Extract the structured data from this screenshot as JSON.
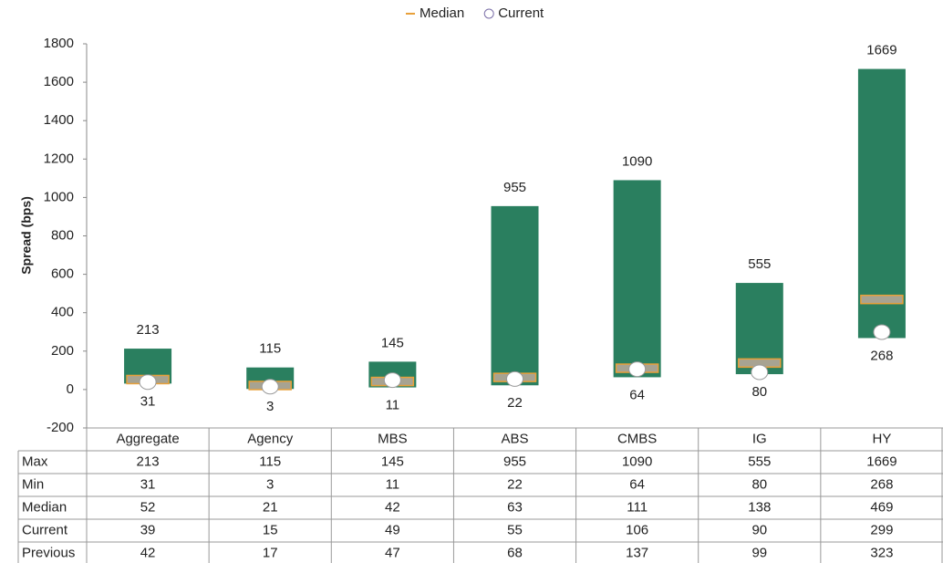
{
  "chart_data": {
    "type": "floating_bar",
    "y_label": "Spread (bps)",
    "categories": [
      "Aggregate",
      "Agency",
      "MBS",
      "ABS",
      "CMBS",
      "IG",
      "HY"
    ],
    "ylim": [
      -200,
      1800
    ],
    "yticks": [
      -200,
      0,
      200,
      400,
      600,
      800,
      1000,
      1200,
      1400,
      1600,
      1800
    ],
    "bar_color": "#2a7f5f",
    "series": [
      {
        "name": "Max",
        "role": "high",
        "values": [
          213,
          115,
          145,
          955,
          1090,
          555,
          1669
        ]
      },
      {
        "name": "Min",
        "role": "low",
        "values": [
          31,
          3,
          11,
          22,
          64,
          80,
          268
        ]
      },
      {
        "name": "Median",
        "role": "median",
        "color": "#e8a03a",
        "in_legend": true,
        "values": [
          52,
          21,
          42,
          63,
          111,
          138,
          469
        ]
      },
      {
        "name": "Current",
        "role": "current",
        "color": "#7b6fa8",
        "in_legend": true,
        "values": [
          39,
          15,
          49,
          55,
          106,
          90,
          299
        ]
      },
      {
        "name": "Previous",
        "role": "table",
        "values": [
          42,
          17,
          47,
          68,
          137,
          99,
          323
        ]
      }
    ]
  }
}
